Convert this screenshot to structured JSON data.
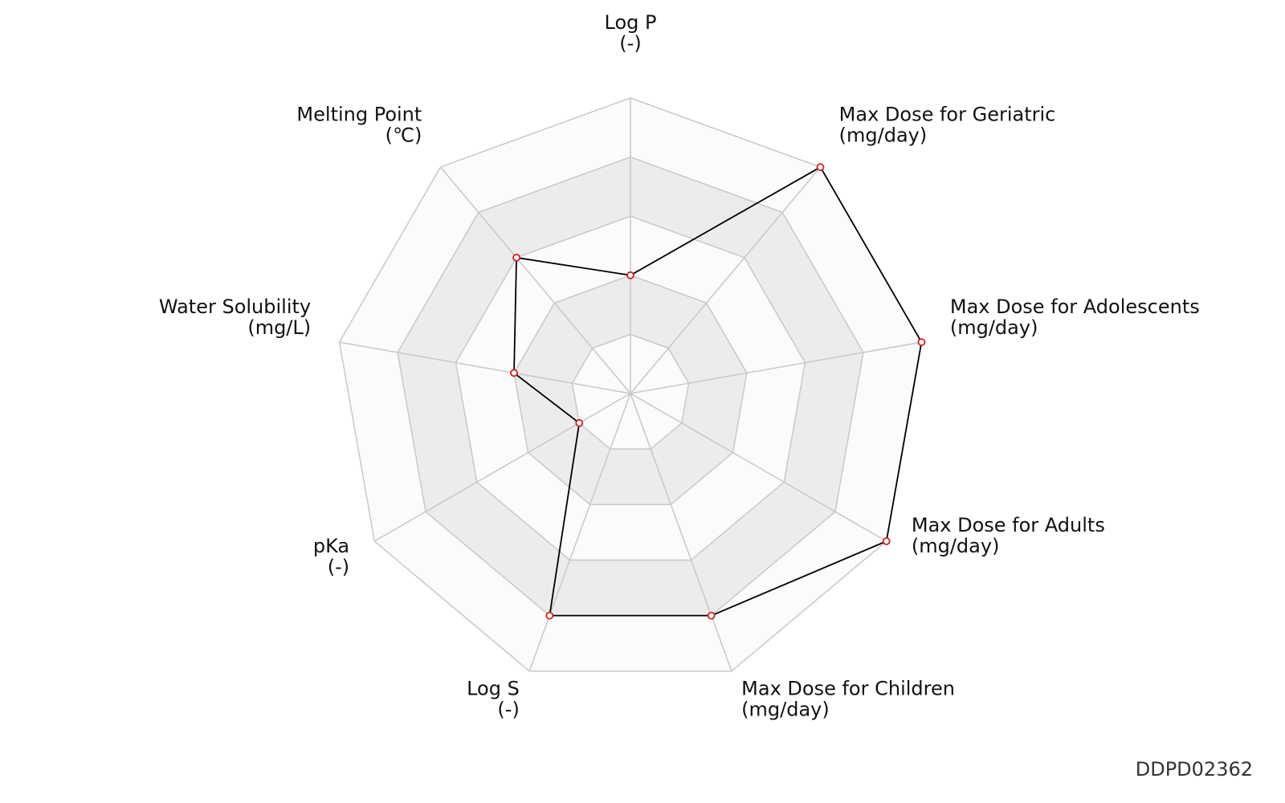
{
  "chart_data": {
    "type": "radar",
    "axes": [
      {
        "name": "Log P",
        "unit": "(-)",
        "value": 0.4
      },
      {
        "name": "Max Dose for Geriatric",
        "unit": "(mg/day)",
        "value": 1.0
      },
      {
        "name": "Max Dose for Adolescents",
        "unit": "(mg/day)",
        "value": 1.0
      },
      {
        "name": "Max Dose for Adults",
        "unit": "(mg/day)",
        "value": 1.0
      },
      {
        "name": "Max Dose for Children",
        "unit": "(mg/day)",
        "value": 0.8
      },
      {
        "name": "Log S",
        "unit": "(-)",
        "value": 0.8
      },
      {
        "name": "pKa",
        "unit": "(-)",
        "value": 0.2
      },
      {
        "name": "Water Solubility",
        "unit": "(mg/L)",
        "value": 0.4
      },
      {
        "name": "Melting Point",
        "unit": "(℃)",
        "value": 0.6
      }
    ],
    "rings": 5,
    "range": [
      0,
      1
    ],
    "colors": {
      "series_line": "#000000",
      "marker_edge": "#cc2222",
      "marker_fill": "#ffffff",
      "grid": "#c8c8c8",
      "band_light": "#fbfbfb",
      "band_shaded": "#ececec"
    }
  },
  "code": "DDPD02362"
}
